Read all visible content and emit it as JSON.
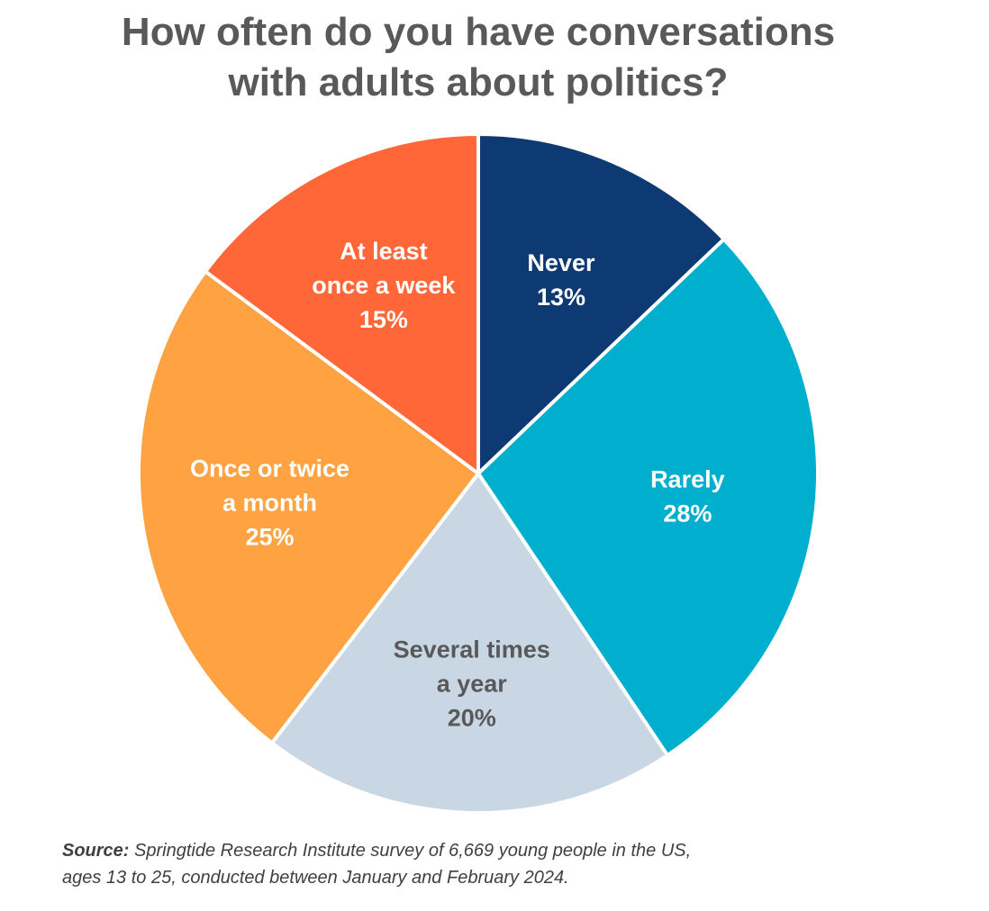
{
  "title": {
    "line1": "How often do you have conversations",
    "line2": "with adults about politics?"
  },
  "chart_data": {
    "type": "pie",
    "title": "How often do you have conversations with adults about politics?",
    "slices": [
      {
        "label_lines": [
          "Never"
        ],
        "value": 13,
        "value_label": "13%",
        "color": "#0E3A73",
        "text_color": "#ffffff"
      },
      {
        "label_lines": [
          "Rarely"
        ],
        "value": 28,
        "value_label": "28%",
        "color": "#00AFCE",
        "text_color": "#ffffff"
      },
      {
        "label_lines": [
          "Several times",
          "a year"
        ],
        "value": 20,
        "value_label": "20%",
        "color": "#C9D6E3",
        "text_color": "#595959"
      },
      {
        "label_lines": [
          "Once or twice",
          "a month"
        ],
        "value": 25,
        "value_label": "25%",
        "color": "#FFA242",
        "text_color": "#ffffff"
      },
      {
        "label_lines": [
          "At least",
          "once a week"
        ],
        "value": 15,
        "value_label": "15%",
        "color": "#FF6738",
        "text_color": "#ffffff"
      }
    ],
    "start": "12 o'clock",
    "direction": "clockwise",
    "legend": "none"
  },
  "source": {
    "label": "Source:",
    "line1_text": " Springtide Research Institute survey of 6,669 young people in the US,",
    "line2": "ages 13 to 25, conducted between January and February 2024."
  }
}
